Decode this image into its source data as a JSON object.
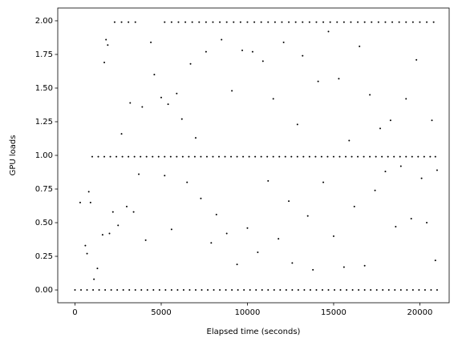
{
  "chart_data": {
    "type": "scatter",
    "xlabel": "Elapsed time (seconds)",
    "ylabel": "GPU loads",
    "xlim": [
      -1000,
      21700
    ],
    "ylim": [
      -0.095,
      2.095
    ],
    "xticks": [
      0,
      5000,
      10000,
      15000,
      20000
    ],
    "yticks": [
      {
        "value": 0,
        "label": "0.00"
      },
      {
        "value": 0.25,
        "label": "0.25"
      },
      {
        "value": 0.5,
        "label": "0.50"
      },
      {
        "value": 0.75,
        "label": "0.75"
      },
      {
        "value": 1,
        "label": "1.00"
      },
      {
        "value": 1.25,
        "label": "1.25"
      },
      {
        "value": 1.5,
        "label": "1.50"
      },
      {
        "value": 1.75,
        "label": "1.75"
      },
      {
        "value": 2,
        "label": "2.00"
      }
    ],
    "grid": false,
    "series": [
      {
        "color": "#000000",
        "x": [
          0,
          350,
          700,
          1050,
          1400,
          1750,
          2100,
          2450,
          2800,
          3150,
          3500,
          3850,
          4200,
          4550,
          4900,
          5250,
          5600,
          5950,
          6300,
          6650,
          7000,
          7350,
          7700,
          8050,
          8400,
          8750,
          9100,
          9450,
          9800,
          10150,
          10500,
          10850,
          11200,
          11550,
          11900,
          12250,
          12600,
          12950,
          13300,
          13650,
          14000,
          14350,
          14700,
          15050,
          15400,
          15750,
          16100,
          16450,
          16800,
          17150,
          17500,
          17850,
          18200,
          18550,
          18900,
          19250,
          19600,
          19950,
          20300,
          20650,
          21000
        ],
        "values": [
          0,
          0,
          0,
          0,
          0,
          0,
          0,
          0,
          0,
          0,
          0,
          0,
          0,
          0,
          0,
          0,
          0,
          0,
          0,
          0,
          0,
          0,
          0,
          0,
          0,
          0,
          0,
          0,
          0,
          0,
          0,
          0,
          0,
          0,
          0,
          0,
          0,
          0,
          0,
          0,
          0,
          0,
          0,
          0,
          0,
          0,
          0,
          0,
          0,
          0,
          0,
          0,
          0,
          0,
          0,
          0,
          0,
          0,
          0,
          0,
          0
        ]
      },
      {
        "color": "#000000",
        "x": [
          1000,
          1350,
          1700,
          2050,
          2400,
          2750,
          3100,
          3450,
          3800,
          4150,
          4500,
          4850,
          5200,
          5550,
          5900,
          6250,
          6600,
          6950,
          7300,
          7650,
          8000,
          8350,
          8700,
          9050,
          9400,
          9750,
          10100,
          10450,
          10800,
          11150,
          11500,
          11850,
          12200,
          12550,
          12900,
          13250,
          13600,
          13950,
          14300,
          14650,
          15000,
          15350,
          15700,
          16050,
          16400,
          16750,
          17100,
          17450,
          17800,
          18150,
          18500,
          18850,
          19200,
          19550,
          19900,
          20250,
          20600,
          20900
        ],
        "values": [
          0.99,
          0.99,
          0.99,
          0.99,
          0.99,
          0.99,
          0.99,
          0.99,
          0.99,
          0.99,
          0.99,
          0.99,
          0.99,
          0.99,
          0.99,
          0.99,
          0.99,
          0.99,
          0.99,
          0.99,
          0.99,
          0.99,
          0.99,
          0.99,
          0.99,
          0.99,
          0.99,
          0.99,
          0.99,
          0.99,
          0.99,
          0.99,
          0.99,
          0.99,
          0.99,
          0.99,
          0.99,
          0.99,
          0.99,
          0.99,
          0.99,
          0.99,
          0.99,
          0.99,
          0.99,
          0.99,
          0.99,
          0.99,
          0.99,
          0.99,
          0.99,
          0.99,
          0.99,
          0.99,
          0.99,
          0.99,
          0.99,
          0.99
        ]
      },
      {
        "color": "#000000",
        "x": [
          2300,
          2700,
          3100,
          3500,
          5200,
          5600,
          6000,
          6400,
          6800,
          7200,
          7600,
          8000,
          8400,
          8800,
          9200,
          9600,
          10000,
          10400,
          10800,
          11200,
          11600,
          12000,
          12400,
          12800,
          13200,
          13600,
          14000,
          14400,
          14800,
          15200,
          15600,
          16000,
          16400,
          16800,
          17200,
          17600,
          18000,
          18400,
          18800,
          19200,
          19600,
          20000,
          20400,
          20800
        ],
        "values": [
          1.99,
          1.99,
          1.99,
          1.99,
          1.99,
          1.99,
          1.99,
          1.99,
          1.99,
          1.99,
          1.99,
          1.99,
          1.99,
          1.99,
          1.99,
          1.99,
          1.99,
          1.99,
          1.99,
          1.99,
          1.99,
          1.99,
          1.99,
          1.99,
          1.99,
          1.99,
          1.99,
          1.99,
          1.99,
          1.99,
          1.99,
          1.99,
          1.99,
          1.99,
          1.99,
          1.99,
          1.99,
          1.99,
          1.99,
          1.99,
          1.99,
          1.99,
          1.99,
          1.99
        ]
      },
      {
        "color": "#000000",
        "x": [
          300,
          600,
          700,
          800,
          900,
          1100,
          1300,
          1600,
          1700,
          1800,
          1900,
          2000,
          2200,
          2500,
          2700,
          3000,
          3200,
          3400,
          3700,
          3900,
          4100,
          4400,
          4600,
          5000,
          5200,
          5400,
          5600,
          5900,
          6200,
          6500,
          6700,
          7000,
          7300,
          7600,
          7900,
          8200,
          8500,
          8800,
          9100,
          9400,
          9700,
          10000,
          10300,
          10600,
          10900,
          11200,
          11500,
          11800,
          12100,
          12400,
          12600,
          12900,
          13200,
          13500,
          13800,
          14100,
          14400,
          14700,
          15000,
          15300,
          15600,
          15900,
          16200,
          16500,
          16800,
          17100,
          17400,
          17700,
          18000,
          18300,
          18600,
          18900,
          19200,
          19500,
          19800,
          20100,
          20400,
          20700,
          20900,
          21000
        ],
        "values": [
          0.65,
          0.33,
          0.27,
          0.73,
          0.65,
          0.08,
          0.16,
          0.41,
          1.69,
          1.86,
          1.82,
          0.42,
          0.58,
          0.48,
          1.16,
          0.62,
          1.39,
          0.58,
          0.86,
          1.36,
          0.37,
          1.84,
          1.6,
          1.43,
          0.85,
          1.38,
          0.45,
          1.46,
          1.27,
          0.8,
          1.68,
          1.13,
          0.68,
          1.77,
          0.35,
          0.56,
          1.86,
          0.42,
          1.48,
          0.19,
          1.78,
          0.46,
          1.77,
          0.28,
          1.7,
          0.81,
          1.42,
          0.38,
          1.84,
          0.66,
          0.2,
          1.23,
          1.74,
          0.55,
          0.15,
          1.55,
          0.8,
          1.92,
          0.4,
          1.57,
          0.17,
          1.11,
          0.62,
          1.81,
          0.18,
          1.45,
          0.74,
          1.2,
          0.88,
          1.26,
          0.47,
          0.92,
          1.42,
          0.53,
          1.71,
          0.83,
          0.5,
          1.26,
          0.22,
          0.89
        ]
      }
    ]
  }
}
